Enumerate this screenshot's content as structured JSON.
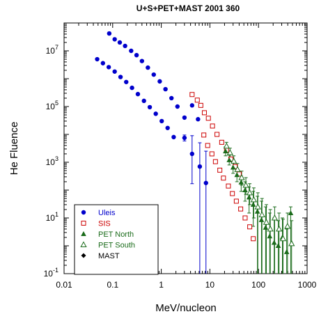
{
  "chart_data": {
    "type": "scatter",
    "title": "U+S+PET+MAST 2001 360",
    "xlabel": "MeV/nucleon",
    "ylabel": "He Fluence",
    "x_scale": "log",
    "y_scale": "log",
    "xlim": [
      0.01,
      1000
    ],
    "ylim": [
      0.1,
      100000000
    ],
    "x_ticks": [
      {
        "value": 0.01,
        "label": "0.01"
      },
      {
        "value": 0.1,
        "label": "0.1"
      },
      {
        "value": 1,
        "label": "1"
      },
      {
        "value": 10,
        "label": "10"
      },
      {
        "value": 100,
        "label": "100"
      },
      {
        "value": 1000,
        "label": "1000"
      }
    ],
    "y_ticks": [
      {
        "value": 0.1,
        "base": "10",
        "exp": "-1"
      },
      {
        "value": 10,
        "base": "10",
        "exp": "1"
      },
      {
        "value": 1000,
        "base": "10",
        "exp": "3"
      },
      {
        "value": 100000,
        "base": "10",
        "exp": "5"
      },
      {
        "value": 10000000,
        "base": "10",
        "exp": "7"
      }
    ],
    "legend_position": "bottom-left",
    "series": [
      {
        "name": "Uleis",
        "color": "#0000cc",
        "marker": "filled-circle",
        "points": [
          {
            "x": 0.085,
            "y": 42000000
          },
          {
            "x": 0.11,
            "y": 26000000
          },
          {
            "x": 0.14,
            "y": 20000000
          },
          {
            "x": 0.18,
            "y": 15000000
          },
          {
            "x": 0.24,
            "y": 10000000
          },
          {
            "x": 0.31,
            "y": 7000000
          },
          {
            "x": 0.4,
            "y": 4300000
          },
          {
            "x": 0.53,
            "y": 2500000
          },
          {
            "x": 0.7,
            "y": 1400000
          },
          {
            "x": 0.93,
            "y": 800000
          },
          {
            "x": 1.22,
            "y": 420000
          },
          {
            "x": 1.62,
            "y": 200000
          },
          {
            "x": 2.15,
            "y": 100000
          },
          {
            "x": 3.0,
            "y": 40000
          },
          {
            "x": 4.3,
            "y": 110000
          },
          {
            "x": 5.7,
            "y": 35000
          },
          {
            "x": 0.048,
            "y": 5000000
          },
          {
            "x": 0.063,
            "y": 3600000
          },
          {
            "x": 0.083,
            "y": 2600000
          },
          {
            "x": 0.11,
            "y": 1800000
          },
          {
            "x": 0.145,
            "y": 1150000
          },
          {
            "x": 0.19,
            "y": 760000
          },
          {
            "x": 0.25,
            "y": 470000
          },
          {
            "x": 0.33,
            "y": 280000
          },
          {
            "x": 0.44,
            "y": 160000
          },
          {
            "x": 0.58,
            "y": 95000
          },
          {
            "x": 0.77,
            "y": 55000
          },
          {
            "x": 1.02,
            "y": 30000
          },
          {
            "x": 1.35,
            "y": 17000
          },
          {
            "x": 1.8,
            "y": 8000
          },
          {
            "x": 3.0,
            "y": 7500,
            "err": [
              5800,
              9500
            ]
          },
          {
            "x": 4.3,
            "y": 2000,
            "err": [
              170,
              9000
            ]
          },
          {
            "x": 6.2,
            "y": 700,
            "err": [
              0.1,
              5000
            ]
          },
          {
            "x": 8.3,
            "y": 180,
            "err": [
              0.1,
              2500
            ]
          }
        ]
      },
      {
        "name": "SIS",
        "color": "#cc0000",
        "marker": "open-square",
        "points": [
          {
            "x": 4.3,
            "y": 270000
          },
          {
            "x": 5.5,
            "y": 170000
          },
          {
            "x": 6.5,
            "y": 110000
          },
          {
            "x": 7.7,
            "y": 60000
          },
          {
            "x": 9.3,
            "y": 38000
          },
          {
            "x": 11.3,
            "y": 20000
          },
          {
            "x": 14,
            "y": 10000
          },
          {
            "x": 17.5,
            "y": 5200
          },
          {
            "x": 22,
            "y": 2700
          },
          {
            "x": 27,
            "y": 1300
          },
          {
            "x": 33,
            "y": 700
          },
          {
            "x": 40,
            "y": 380
          },
          {
            "x": 7.5,
            "y": 9500
          },
          {
            "x": 9.0,
            "y": 4000
          },
          {
            "x": 11,
            "y": 2000
          },
          {
            "x": 13,
            "y": 1050
          },
          {
            "x": 16,
            "y": 520
          },
          {
            "x": 19,
            "y": 270
          },
          {
            "x": 24,
            "y": 140
          },
          {
            "x": 29,
            "y": 75
          },
          {
            "x": 35,
            "y": 40
          },
          {
            "x": 43,
            "y": 21
          },
          {
            "x": 53,
            "y": 10
          },
          {
            "x": 66,
            "y": 4.8
          },
          {
            "x": 78,
            "y": 1.8
          }
        ]
      },
      {
        "name": "PET North",
        "color": "#1a6b1a",
        "marker": "filled-triangle",
        "points": [
          {
            "x": 21,
            "y": 2500,
            "err": [
              1700,
              3600
            ]
          },
          {
            "x": 25,
            "y": 1200,
            "err": [
              800,
              1800
            ]
          },
          {
            "x": 30,
            "y": 650,
            "err": [
              400,
              1000
            ]
          },
          {
            "x": 36,
            "y": 350,
            "err": [
              200,
              560
            ]
          },
          {
            "x": 44,
            "y": 190,
            "err": [
              90,
              320
            ]
          },
          {
            "x": 53,
            "y": 100,
            "err": [
              40,
              200
            ]
          },
          {
            "x": 64,
            "y": 55,
            "err": [
              15,
              130
            ]
          },
          {
            "x": 78,
            "y": 30,
            "err": [
              5,
              90
            ]
          },
          {
            "x": 95,
            "y": 17,
            "err": [
              0.1,
              60
            ]
          },
          {
            "x": 115,
            "y": 8.5,
            "err": [
              0.1,
              40
            ]
          },
          {
            "x": 140,
            "y": 4.5,
            "err": [
              0.1,
              25
            ]
          },
          {
            "x": 170,
            "y": 2.2,
            "err": [
              0.1,
              15
            ]
          },
          {
            "x": 210,
            "y": 1.3,
            "err": [
              0.1,
              10
            ]
          },
          {
            "x": 255,
            "y": 1.0,
            "err": [
              0.1,
              8
            ]
          },
          {
            "x": 310,
            "y": 2.0,
            "err": [
              0.1,
              10
            ]
          },
          {
            "x": 380,
            "y": 0.6,
            "err": [
              0.1,
              4
            ]
          },
          {
            "x": 460,
            "y": 15,
            "err": [
              0.1,
              25
            ]
          }
        ]
      },
      {
        "name": "PET South",
        "color": "#1a6b1a",
        "marker": "open-triangle",
        "points": [
          {
            "x": 22,
            "y": 3800,
            "err": [
              2800,
              5200
            ]
          },
          {
            "x": 26,
            "y": 2200,
            "err": [
              1500,
              3200
            ]
          },
          {
            "x": 31,
            "y": 1100,
            "err": [
              700,
              1700
            ]
          },
          {
            "x": 37,
            "y": 550,
            "err": [
              330,
              900
            ]
          },
          {
            "x": 45,
            "y": 280,
            "err": [
              150,
              480
            ]
          },
          {
            "x": 55,
            "y": 150,
            "err": [
              70,
              280
            ]
          },
          {
            "x": 66,
            "y": 80,
            "err": [
              30,
              170
            ]
          },
          {
            "x": 80,
            "y": 45,
            "err": [
              10,
              120
            ]
          },
          {
            "x": 97,
            "y": 25,
            "err": [
              0.1,
              80
            ]
          },
          {
            "x": 118,
            "y": 13,
            "err": [
              0.1,
              50
            ]
          },
          {
            "x": 145,
            "y": 7,
            "err": [
              0.1,
              30
            ]
          },
          {
            "x": 175,
            "y": 4,
            "err": [
              0.1,
              20
            ]
          },
          {
            "x": 215,
            "y": 10,
            "err": [
              0.1,
              25
            ]
          },
          {
            "x": 265,
            "y": 4,
            "err": [
              0.1,
              15
            ]
          },
          {
            "x": 320,
            "y": 1.8,
            "err": [
              0.1,
              9
            ]
          },
          {
            "x": 395,
            "y": 5,
            "err": [
              0.1,
              15
            ]
          },
          {
            "x": 480,
            "y": 1.2,
            "err": [
              0.1,
              8
            ]
          }
        ]
      },
      {
        "name": "MAST",
        "color": "#000000",
        "marker": "filled-diamond",
        "points": []
      }
    ]
  }
}
